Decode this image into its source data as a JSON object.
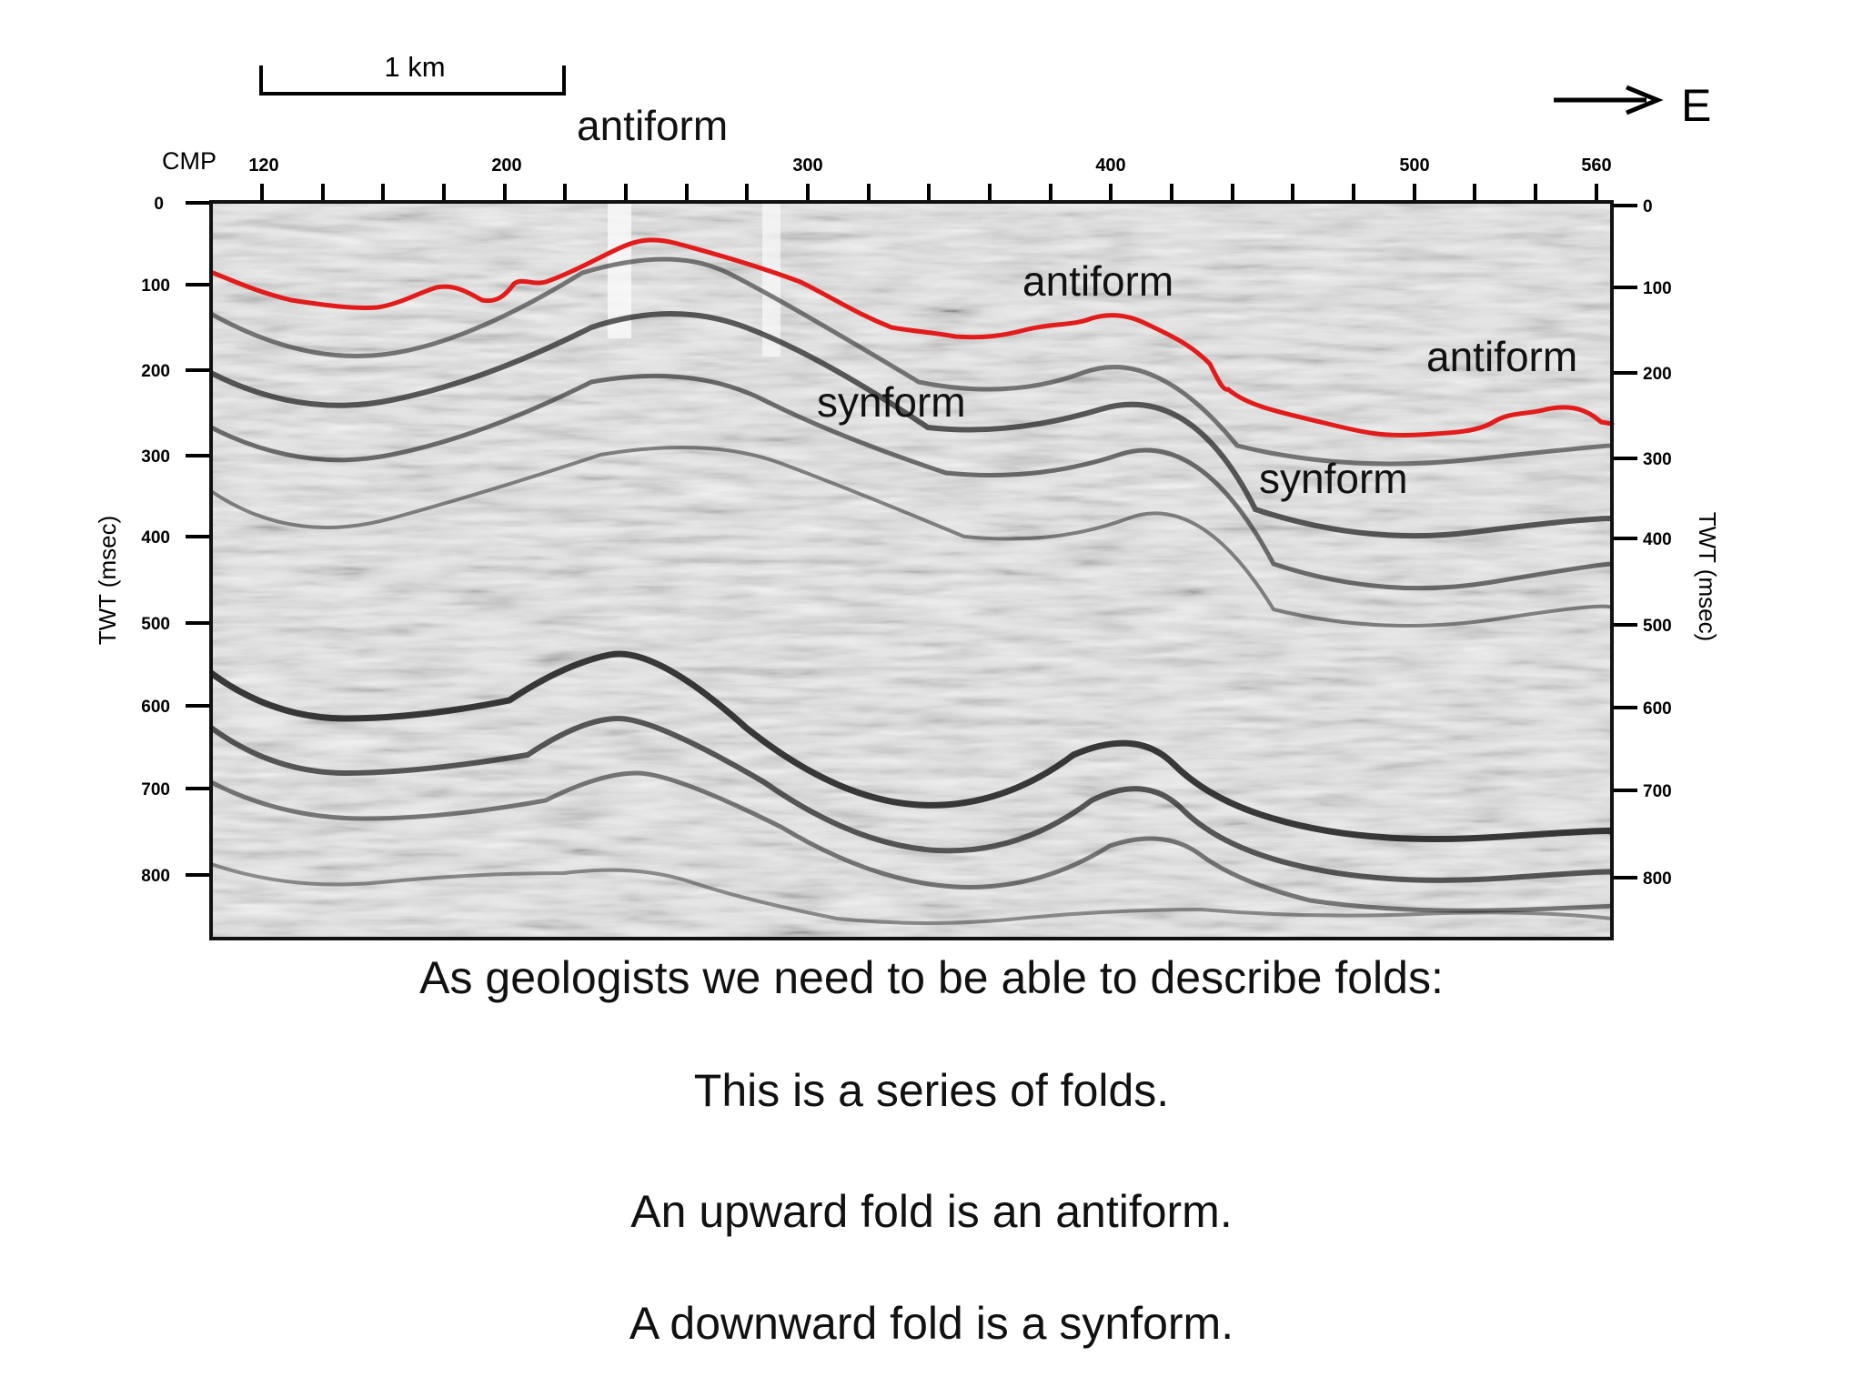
{
  "scale_bar": {
    "label": "1 km"
  },
  "direction": {
    "label": "E"
  },
  "axes": {
    "top_title": "CMP",
    "top_ticks": [
      "120",
      "200",
      "300",
      "400",
      "500",
      "560"
    ],
    "left_title": "TWT (msec)",
    "right_title": "TWT (msec)",
    "twt_ticks": [
      "0",
      "100",
      "200",
      "300",
      "400",
      "500",
      "600",
      "700",
      "800"
    ]
  },
  "annotations": {
    "antiform_1": "antiform",
    "antiform_2": "antiform",
    "antiform_3": "antiform",
    "synform_1": "synform",
    "synform_2": "synform"
  },
  "colors": {
    "horizon": "#e21b1b",
    "frame": "#111111",
    "reflector": "#1a1a1a"
  },
  "captions": {
    "line1": "As geologists we need to be able to describe folds:",
    "line2": "This is a series of folds.",
    "line3": "An upward fold is an antiform.",
    "line4": "A downward fold is a synform."
  }
}
